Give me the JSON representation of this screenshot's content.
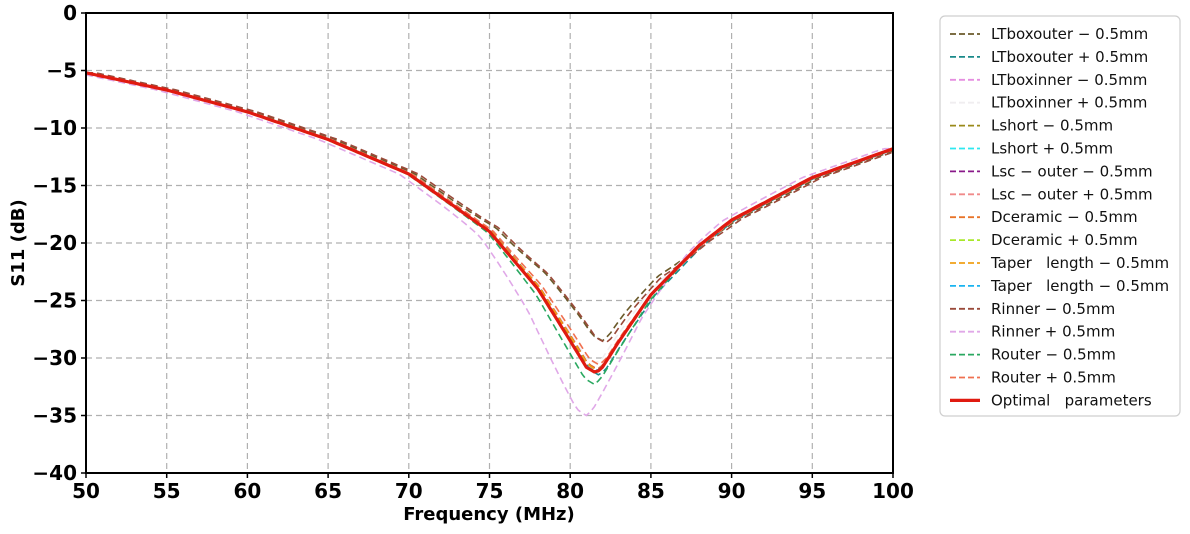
{
  "chart_data": {
    "type": "line",
    "xlabel": "Frequency (MHz)",
    "ylabel": "S11 (dB)",
    "xlim": [
      50,
      100
    ],
    "ylim": [
      -40,
      0
    ],
    "xticks": [
      "50",
      "55",
      "60",
      "65",
      "70",
      "75",
      "80",
      "85",
      "90",
      "95",
      "100"
    ],
    "yticks": [
      "0",
      "−5",
      "−10",
      "−15",
      "−20",
      "−25",
      "−30",
      "−35",
      "−40"
    ],
    "grid": true,
    "legend_position": "outside-right",
    "series": [
      {
        "name": "LTboxouter − 0.5mm",
        "color": "#6b5a2a",
        "style": "dashed",
        "min_x": 82.0,
        "min_y": -28.5
      },
      {
        "name": "LTboxouter + 0.5mm",
        "color": "#1a8a8a",
        "style": "dashed",
        "min_x": 81.8,
        "min_y": -31.5
      },
      {
        "name": "LTboxinner − 0.5mm",
        "color": "#e58ee0",
        "style": "dashed",
        "min_x": 81.7,
        "min_y": -31.0
      },
      {
        "name": "LTboxinner + 0.5mm",
        "color": "#f0eef0",
        "style": "dashed",
        "min_x": 81.6,
        "min_y": -30.5
      },
      {
        "name": "Lshort − 0.5mm",
        "color": "#9a8a1a",
        "style": "dashed",
        "min_x": 81.7,
        "min_y": -31.0
      },
      {
        "name": "Lshort + 0.5mm",
        "color": "#2ee8f0",
        "style": "dashed",
        "min_x": 81.6,
        "min_y": -31.2
      },
      {
        "name": "Lsc − outer − 0.5mm",
        "color": "#8a1a8a",
        "style": "dashed",
        "min_x": 81.7,
        "min_y": -31.0
      },
      {
        "name": "Lsc − outer + 0.5mm",
        "color": "#f08a8a",
        "style": "dashed",
        "min_x": 81.6,
        "min_y": -31.3
      },
      {
        "name": "Dceramic − 0.5mm",
        "color": "#e8742a",
        "style": "dashed",
        "min_x": 81.7,
        "min_y": -31.0
      },
      {
        "name": "Dceramic + 0.5mm",
        "color": "#a8e82a",
        "style": "dashed",
        "min_x": 81.6,
        "min_y": -31.3
      },
      {
        "name": "Taper   length − 0.5mm",
        "color": "#f0a018",
        "style": "dashed",
        "min_x": 81.7,
        "min_y": -31.1
      },
      {
        "name": "Taper   length − 0.5mm",
        "color": "#1ab4f0",
        "style": "dashed",
        "min_x": 81.6,
        "min_y": -31.2
      },
      {
        "name": "Rinner − 0.5mm",
        "color": "#9a4a3a",
        "style": "dashed",
        "min_x": 82.2,
        "min_y": -28.7
      },
      {
        "name": "Rinner + 0.5mm",
        "color": "#e0a8e8",
        "style": "dashed",
        "min_x": 81.0,
        "min_y": -35.0
      },
      {
        "name": "Router − 0.5mm",
        "color": "#2aa860",
        "style": "dashed",
        "min_x": 81.5,
        "min_y": -32.3
      },
      {
        "name": "Router + 0.5mm",
        "color": "#f07050",
        "style": "dashed",
        "min_x": 81.8,
        "min_y": -30.6
      },
      {
        "name": "Optimal   parameters",
        "color": "#e01a10",
        "style": "solid",
        "x": [
          50,
          55,
          60,
          65,
          70,
          75,
          78,
          80,
          81,
          81.6,
          82,
          83,
          85,
          88,
          90,
          95,
          100
        ],
        "y": [
          -5.2,
          -6.7,
          -8.6,
          -11.0,
          -14.0,
          -19.0,
          -24.0,
          -28.5,
          -30.8,
          -31.3,
          -30.8,
          -28.6,
          -24.5,
          -20.2,
          -18.0,
          -14.3,
          -11.8
        ]
      }
    ]
  }
}
